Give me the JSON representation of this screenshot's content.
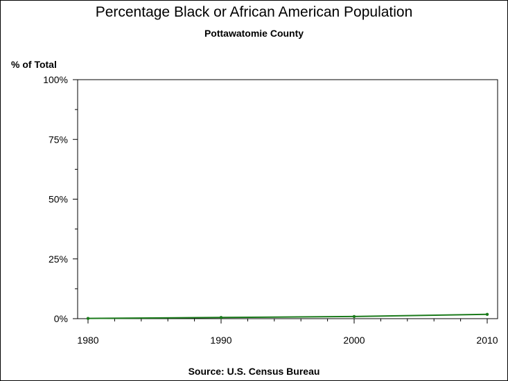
{
  "chart_data": {
    "type": "line",
    "title": "Percentage Black or African American Population",
    "subtitle": "Pottawatomie County",
    "ylabel": "% of Total",
    "xlabel": "",
    "source": "Source: U.S. Census Bureau",
    "x": [
      1980,
      1990,
      2000,
      2010
    ],
    "x_tick_labels": [
      "1980",
      "1990",
      "2000",
      "2010"
    ],
    "y_tick_labels": [
      "0%",
      "25%",
      "50%",
      "75%",
      "100%"
    ],
    "y_ticks": [
      0,
      25,
      50,
      75,
      100
    ],
    "xlim": [
      1980,
      2010
    ],
    "ylim": [
      0,
      100
    ],
    "grid": false,
    "series": [
      {
        "values": [
          0.1,
          0.5,
          0.9,
          1.8
        ],
        "color": "#1a7a1a"
      }
    ]
  }
}
